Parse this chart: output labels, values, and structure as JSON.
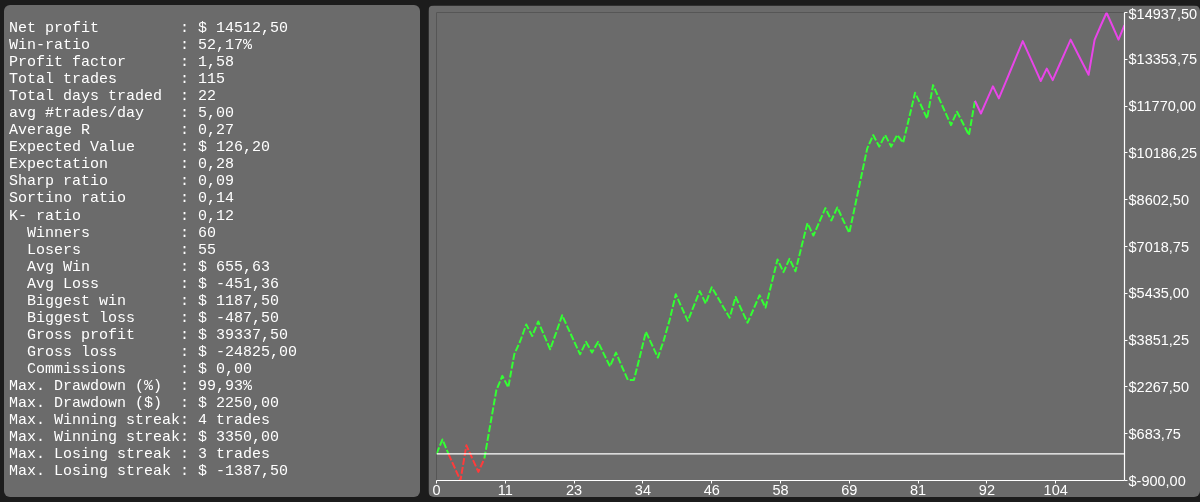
{
  "chart_data": [
    {
      "type": "other",
      "annotations": [
        "Net profit         : $ 14512,50",
        "Win-ratio          : 52,17%",
        "Profit factor      : 1,58",
        "Total trades       : 115",
        "Total days traded  : 22",
        "avg #trades/day    : 5,00",
        "Average R          : 0,27",
        "Expected Value     : $ 126,20",
        "Expectation        : 0,28",
        "Sharp ratio        : 0,09",
        "Sortino ratio      : 0,14",
        "K- ratio           : 0,12",
        "  Winners          : 60",
        "  Losers           : 55",
        "  Avg Win          : $ 655,63",
        "  Avg Loss         : $ -451,36",
        "  Biggest win      : $ 1187,50",
        "  Biggest loss     : $ -487,50",
        "  Gross profit     : $ 39337,50",
        "  Gross loss       : $ -24825,00",
        "  Commissions      : $ 0,00",
        "Max. Drawdown (%)  : 99,93%",
        "Max. Drawdown ($)  : $ 2250,00",
        "Max. Winning streak: 4 trades",
        "Max. Winning streak: $ 3350,00",
        "Max. Losing streak : 3 trades",
        "Max. Losing streak : $ -1387,50"
      ]
    },
    {
      "type": "line",
      "grid": false,
      "xlim": [
        0,
        115
      ],
      "ylim": [
        -900,
        14937.5
      ],
      "xticks": [
        0,
        {
          "value": 11.5,
          "label": "11"
        },
        23,
        {
          "value": 34.5,
          "label": "34"
        },
        46,
        {
          "value": 57.5,
          "label": "58"
        },
        69,
        {
          "value": 80.5,
          "label": "81"
        },
        92,
        {
          "value": 103.5,
          "label": "104"
        }
      ],
      "yticks": [
        {
          "value": -900,
          "label": "$-900,00"
        },
        {
          "value": 683.75,
          "label": "$683,75"
        },
        {
          "value": 2267.5,
          "label": "$2267,50"
        },
        {
          "value": 3851.25,
          "label": "$3851,25"
        },
        {
          "value": 5435,
          "label": "$5435,00"
        },
        {
          "value": 7018.75,
          "label": "$7018,75"
        },
        {
          "value": 8602.5,
          "label": "$8602,50"
        },
        {
          "value": 10186.25,
          "label": "$10186,25"
        },
        {
          "value": 11770,
          "label": "$11770,00"
        },
        {
          "value": 13353.75,
          "label": "$13353,75"
        },
        {
          "value": 14937.5,
          "label": "$14937,50"
        }
      ],
      "ref_lines": [
        {
          "axis": "y",
          "value": 0,
          "color": "#ffffff",
          "line_style": "solid"
        }
      ],
      "series": [
        {
          "color": "#33ff33",
          "line_style": "dashed",
          "x": [
            0,
            1,
            2,
            3,
            4,
            5,
            6,
            7,
            8,
            9,
            10,
            11,
            12,
            13,
            14,
            15,
            16,
            17,
            18,
            19,
            20,
            21,
            22,
            23,
            24,
            25,
            26,
            27,
            28,
            29,
            30,
            31,
            32,
            33,
            34,
            35,
            36,
            37,
            38,
            39,
            40,
            41,
            42,
            43,
            44,
            45,
            46,
            47,
            48,
            49,
            50,
            51,
            52,
            53,
            54,
            55,
            56,
            57,
            58,
            59,
            60,
            61,
            62,
            63,
            64,
            65,
            66,
            67,
            68,
            69,
            70,
            71,
            72,
            73,
            74,
            75,
            76,
            77,
            78,
            79,
            80,
            81,
            82,
            83,
            84,
            85,
            86,
            87,
            88,
            89,
            90
          ],
          "values": [
            0,
            490,
            0,
            null,
            null,
            null,
            null,
            null,
            -160,
            1000,
            2150,
            2640,
            2250,
            3370,
            3820,
            4380,
            3990,
            4480,
            4010,
            3540,
            4100,
            4690,
            4250,
            3810,
            3370,
            3790,
            3430,
            3790,
            3370,
            2960,
            3430,
            2950,
            2500,
            2500,
            3300,
            4130,
            3700,
            3260,
            3850,
            4560,
            5400,
            4950,
            4500,
            5000,
            5510,
            5090,
            5640,
            5300,
            4950,
            4610,
            5310,
            4870,
            4440,
            4900,
            5370,
            4950,
            5760,
            6580,
            6150,
            6600,
            6180,
            7000,
            7810,
            7390,
            7850,
            8320,
            7900,
            8340,
            7900,
            7480,
            8430,
            9390,
            10340,
            10790,
            10400,
            10790,
            10400,
            10790,
            10530,
            11370,
            12220,
            11790,
            11350,
            12480,
            12030,
            11580,
            11130,
            11580,
            11190,
            10790,
            11950
          ]
        },
        {
          "color": "#ff3b3b",
          "line_style": "dashed",
          "x": [
            2,
            3,
            4,
            5,
            6,
            7,
            8
          ],
          "values": [
            0,
            -450,
            -900,
            290,
            -160,
            -610,
            -160
          ]
        },
        {
          "color": "#e845e8",
          "line_style": "solid",
          "x": [
            90,
            91,
            92,
            93,
            94,
            95,
            96,
            97,
            98,
            99,
            100,
            101,
            102,
            103,
            104,
            105,
            106,
            107,
            108,
            109,
            110,
            111,
            112,
            113,
            114,
            115
          ],
          "values": [
            11950,
            11520,
            11980,
            12440,
            12030,
            12510,
            13000,
            13490,
            13970,
            13520,
            13070,
            12620,
            13040,
            12650,
            13110,
            13560,
            14020,
            13620,
            13220,
            12830,
            14010,
            14480,
            14930,
            14480,
            14020,
            14510
          ]
        }
      ]
    }
  ]
}
